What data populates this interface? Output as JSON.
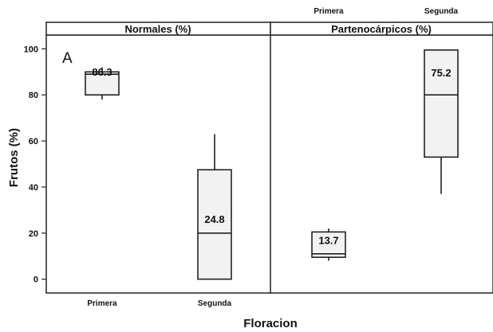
{
  "chart_data": {
    "type": "boxplot",
    "ylabel": "Frutos (%)",
    "xlabel": "Floracion",
    "panel_letter": "A",
    "ylim": [
      -6,
      106
    ],
    "yticks": [
      0,
      20,
      40,
      60,
      80,
      100
    ],
    "categories": [
      "Primera",
      "Segunda"
    ],
    "box_facecolor": "#f2f2f2",
    "line_color": "#222222",
    "panels": [
      {
        "title": "Normales (%)",
        "boxes": [
          {
            "category": "Primera",
            "whisker_low": 78,
            "q1": 80,
            "median": 89,
            "q3": 90,
            "whisker_high": 92,
            "label": "86.3"
          },
          {
            "category": "Segunda",
            "whisker_low": 0,
            "q1": 0,
            "median": 20,
            "q3": 47.5,
            "whisker_high": 63,
            "label": "24.8"
          }
        ]
      },
      {
        "title": "Partenocárpicos (%)",
        "boxes": [
          {
            "category": "Primera",
            "whisker_low": 8,
            "q1": 9.5,
            "median": 11,
            "q3": 20.5,
            "whisker_high": 22,
            "label": "13.7"
          },
          {
            "category": "Segunda",
            "whisker_low": 37,
            "q1": 53,
            "median": 80,
            "q3": 99.5,
            "whisker_high": 99.5,
            "label": "75.2"
          }
        ]
      }
    ]
  }
}
